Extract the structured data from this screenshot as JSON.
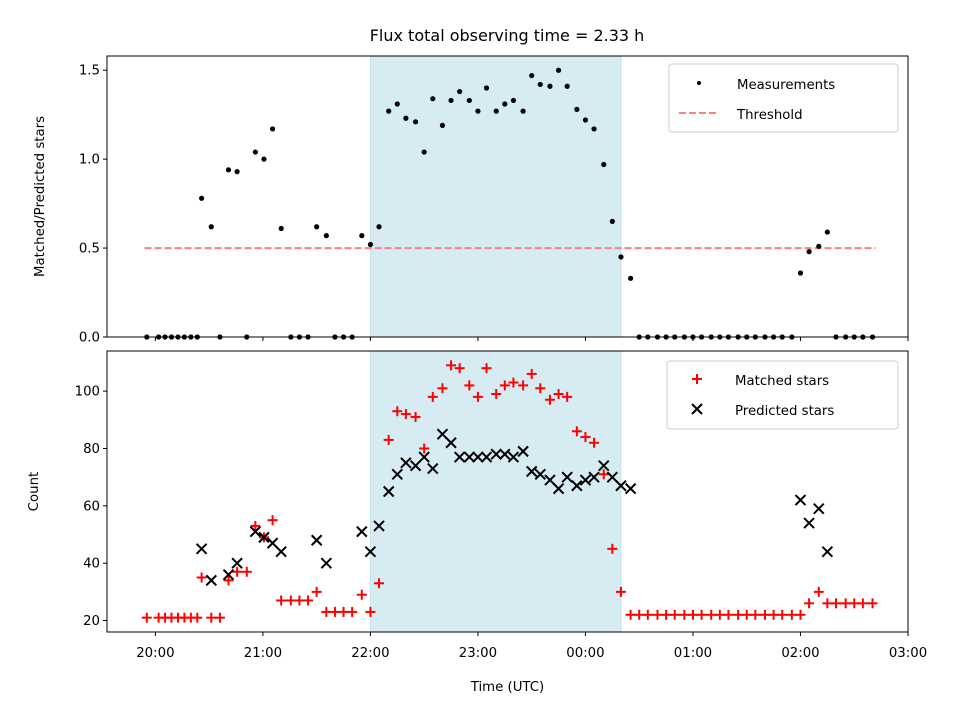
{
  "chart_data": {
    "title": "Flux total observing time = 2.33 h",
    "xlabel": "Time (UTC)",
    "x_unit": "hours since 20:00 UTC",
    "xlim": [
      -0.45,
      7.0
    ],
    "x_ticks": [
      {
        "v": 0,
        "label": "20:00"
      },
      {
        "v": 1,
        "label": "21:00"
      },
      {
        "v": 2,
        "label": "22:00"
      },
      {
        "v": 3,
        "label": "23:00"
      },
      {
        "v": 4,
        "label": "00:00"
      },
      {
        "v": 5,
        "label": "01:00"
      },
      {
        "v": 6,
        "label": "02:00"
      },
      {
        "v": 7,
        "label": "03:00"
      }
    ],
    "shaded_span": {
      "x0": 2.0,
      "x1": 4.33,
      "color": "#add8e6"
    },
    "panels": [
      {
        "type": "scatter",
        "ylabel": "Matched/Predicted stars",
        "ylim": [
          0,
          1.58
        ],
        "y_ticks": [
          {
            "v": 0,
            "label": "0.0"
          },
          {
            "v": 0.5,
            "label": "0.5"
          },
          {
            "v": 1.0,
            "label": "1.0"
          },
          {
            "v": 1.5,
            "label": "1.5"
          }
        ],
        "legend": {
          "position": "top-right",
          "entries": [
            "Measurements",
            "Threshold"
          ]
        },
        "threshold": {
          "name": "Threshold",
          "y": 0.5,
          "x0": -0.1,
          "x1": 6.7,
          "color": "#ff7f7f"
        },
        "series": [
          {
            "name": "Measurements",
            "marker": "dot",
            "color": "#000000",
            "points": [
              [
                -0.08,
                0
              ],
              [
                0.03,
                0
              ],
              [
                0.09,
                0
              ],
              [
                0.15,
                0
              ],
              [
                0.21,
                0
              ],
              [
                0.27,
                0
              ],
              [
                0.33,
                0
              ],
              [
                0.39,
                0
              ],
              [
                0.43,
                0.78
              ],
              [
                0.52,
                0.62
              ],
              [
                0.6,
                0
              ],
              [
                0.68,
                0.94
              ],
              [
                0.76,
                0.93
              ],
              [
                0.85,
                0
              ],
              [
                0.93,
                1.04
              ],
              [
                1.01,
                1.0
              ],
              [
                1.09,
                1.17
              ],
              [
                1.17,
                0.61
              ],
              [
                1.26,
                0
              ],
              [
                1.34,
                0
              ],
              [
                1.42,
                0
              ],
              [
                1.5,
                0.62
              ],
              [
                1.59,
                0.57
              ],
              [
                1.67,
                0
              ],
              [
                1.75,
                0
              ],
              [
                1.83,
                0
              ],
              [
                1.92,
                0.57
              ],
              [
                2.0,
                0.52
              ],
              [
                2.08,
                0.62
              ],
              [
                2.17,
                1.27
              ],
              [
                2.25,
                1.31
              ],
              [
                2.33,
                1.23
              ],
              [
                2.42,
                1.21
              ],
              [
                2.5,
                1.04
              ],
              [
                2.58,
                1.34
              ],
              [
                2.67,
                1.19
              ],
              [
                2.75,
                1.33
              ],
              [
                2.83,
                1.38
              ],
              [
                2.92,
                1.33
              ],
              [
                3.0,
                1.27
              ],
              [
                3.08,
                1.4
              ],
              [
                3.17,
                1.27
              ],
              [
                3.25,
                1.31
              ],
              [
                3.33,
                1.33
              ],
              [
                3.42,
                1.27
              ],
              [
                3.5,
                1.47
              ],
              [
                3.58,
                1.42
              ],
              [
                3.67,
                1.41
              ],
              [
                3.75,
                1.5
              ],
              [
                3.83,
                1.41
              ],
              [
                3.92,
                1.28
              ],
              [
                4.0,
                1.22
              ],
              [
                4.08,
                1.17
              ],
              [
                4.17,
                0.97
              ],
              [
                4.25,
                0.65
              ],
              [
                4.33,
                0.45
              ],
              [
                4.42,
                0.33
              ],
              [
                4.5,
                0
              ],
              [
                4.58,
                0
              ],
              [
                4.67,
                0
              ],
              [
                4.75,
                0
              ],
              [
                4.83,
                0
              ],
              [
                4.92,
                0
              ],
              [
                5.0,
                0
              ],
              [
                5.08,
                0
              ],
              [
                5.17,
                0
              ],
              [
                5.25,
                0
              ],
              [
                5.33,
                0
              ],
              [
                5.42,
                0
              ],
              [
                5.5,
                0
              ],
              [
                5.58,
                0
              ],
              [
                5.67,
                0
              ],
              [
                5.75,
                0
              ],
              [
                5.83,
                0
              ],
              [
                5.92,
                0
              ],
              [
                6.0,
                0.36
              ],
              [
                6.08,
                0.48
              ],
              [
                6.17,
                0.51
              ],
              [
                6.25,
                0.59
              ],
              [
                6.33,
                0
              ],
              [
                6.42,
                0
              ],
              [
                6.5,
                0
              ],
              [
                6.58,
                0
              ],
              [
                6.67,
                0
              ]
            ]
          }
        ]
      },
      {
        "type": "scatter",
        "ylabel": "Count",
        "ylim": [
          16,
          114
        ],
        "y_ticks": [
          {
            "v": 20,
            "label": "20"
          },
          {
            "v": 40,
            "label": "40"
          },
          {
            "v": 60,
            "label": "60"
          },
          {
            "v": 80,
            "label": "80"
          },
          {
            "v": 100,
            "label": "100"
          }
        ],
        "legend": {
          "position": "top-right",
          "entries": [
            "Matched stars",
            "Predicted stars"
          ]
        },
        "series": [
          {
            "name": "Matched stars",
            "marker": "plus",
            "color": "#ff0000",
            "points": [
              [
                -0.08,
                21
              ],
              [
                0.03,
                21
              ],
              [
                0.09,
                21
              ],
              [
                0.15,
                21
              ],
              [
                0.21,
                21
              ],
              [
                0.27,
                21
              ],
              [
                0.33,
                21
              ],
              [
                0.39,
                21
              ],
              [
                0.43,
                35
              ],
              [
                0.52,
                21
              ],
              [
                0.6,
                21
              ],
              [
                0.68,
                34
              ],
              [
                0.76,
                37
              ],
              [
                0.85,
                37
              ],
              [
                0.93,
                53
              ],
              [
                1.01,
                49
              ],
              [
                1.09,
                55
              ],
              [
                1.17,
                27
              ],
              [
                1.26,
                27
              ],
              [
                1.34,
                27
              ],
              [
                1.42,
                27
              ],
              [
                1.5,
                30
              ],
              [
                1.59,
                23
              ],
              [
                1.67,
                23
              ],
              [
                1.75,
                23
              ],
              [
                1.83,
                23
              ],
              [
                1.92,
                29
              ],
              [
                2.0,
                23
              ],
              [
                2.08,
                33
              ],
              [
                2.17,
                83
              ],
              [
                2.25,
                93
              ],
              [
                2.33,
                92
              ],
              [
                2.42,
                91
              ],
              [
                2.5,
                80
              ],
              [
                2.58,
                98
              ],
              [
                2.67,
                101
              ],
              [
                2.75,
                109
              ],
              [
                2.83,
                108
              ],
              [
                2.92,
                102
              ],
              [
                3.0,
                98
              ],
              [
                3.08,
                108
              ],
              [
                3.17,
                99
              ],
              [
                3.25,
                102
              ],
              [
                3.33,
                103
              ],
              [
                3.42,
                102
              ],
              [
                3.5,
                106
              ],
              [
                3.58,
                101
              ],
              [
                3.67,
                97
              ],
              [
                3.75,
                99
              ],
              [
                3.83,
                98
              ],
              [
                3.92,
                86
              ],
              [
                4.0,
                84
              ],
              [
                4.08,
                82
              ],
              [
                4.17,
                71
              ],
              [
                4.25,
                45
              ],
              [
                4.33,
                30
              ],
              [
                4.42,
                22
              ],
              [
                4.5,
                22
              ],
              [
                4.58,
                22
              ],
              [
                4.67,
                22
              ],
              [
                4.75,
                22
              ],
              [
                4.83,
                22
              ],
              [
                4.92,
                22
              ],
              [
                5.0,
                22
              ],
              [
                5.08,
                22
              ],
              [
                5.17,
                22
              ],
              [
                5.25,
                22
              ],
              [
                5.33,
                22
              ],
              [
                5.42,
                22
              ],
              [
                5.5,
                22
              ],
              [
                5.58,
                22
              ],
              [
                5.67,
                22
              ],
              [
                5.75,
                22
              ],
              [
                5.83,
                22
              ],
              [
                5.92,
                22
              ],
              [
                6.0,
                22
              ],
              [
                6.08,
                26
              ],
              [
                6.17,
                30
              ],
              [
                6.25,
                26
              ],
              [
                6.33,
                26
              ],
              [
                6.42,
                26
              ],
              [
                6.5,
                26
              ],
              [
                6.58,
                26
              ],
              [
                6.67,
                26
              ]
            ]
          },
          {
            "name": "Predicted stars",
            "marker": "x",
            "color": "#000000",
            "points": [
              [
                0.43,
                45
              ],
              [
                0.52,
                34
              ],
              [
                0.68,
                36
              ],
              [
                0.76,
                40
              ],
              [
                0.93,
                51
              ],
              [
                1.01,
                49
              ],
              [
                1.09,
                47
              ],
              [
                1.17,
                44
              ],
              [
                1.5,
                48
              ],
              [
                1.59,
                40
              ],
              [
                1.92,
                51
              ],
              [
                2.0,
                44
              ],
              [
                2.08,
                53
              ],
              [
                2.17,
                65
              ],
              [
                2.25,
                71
              ],
              [
                2.33,
                75
              ],
              [
                2.42,
                74
              ],
              [
                2.5,
                77
              ],
              [
                2.58,
                73
              ],
              [
                2.67,
                85
              ],
              [
                2.75,
                82
              ],
              [
                2.83,
                77
              ],
              [
                2.92,
                77
              ],
              [
                3.0,
                77
              ],
              [
                3.08,
                77
              ],
              [
                3.17,
                78
              ],
              [
                3.25,
                78
              ],
              [
                3.33,
                77
              ],
              [
                3.42,
                79
              ],
              [
                3.5,
                72
              ],
              [
                3.58,
                71
              ],
              [
                3.67,
                69
              ],
              [
                3.75,
                66
              ],
              [
                3.83,
                70
              ],
              [
                3.92,
                67
              ],
              [
                4.0,
                69
              ],
              [
                4.08,
                70
              ],
              [
                4.17,
                74
              ],
              [
                4.25,
                70
              ],
              [
                4.33,
                67
              ],
              [
                4.42,
                66
              ],
              [
                6.0,
                62
              ],
              [
                6.08,
                54
              ],
              [
                6.17,
                59
              ],
              [
                6.25,
                44
              ]
            ]
          }
        ]
      }
    ]
  }
}
